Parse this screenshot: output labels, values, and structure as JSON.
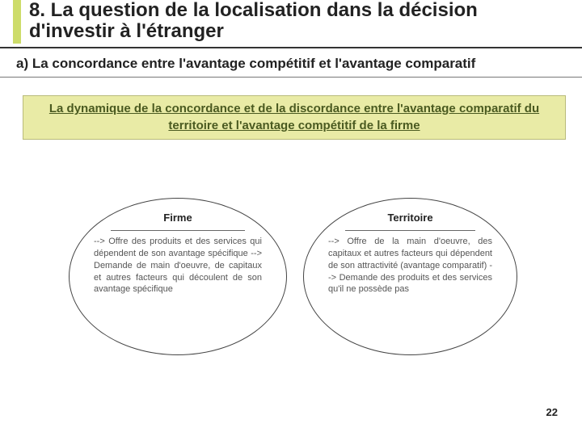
{
  "header": {
    "title": "8. La question de la localisation dans la décision d'investir à l'étranger",
    "subtitle": "a) La concordance entre l'avantage compétitif et l'avantage comparatif"
  },
  "callout": {
    "text": "La dynamique de la concordance et de la discordance entre l'avantage comparatif du territoire et l'avantage compétitif de la firme"
  },
  "diagram": {
    "left": {
      "title": "Firme",
      "body": "--> Offre des produits et des services qui dépendent de son avantage spécifique\n--> Demande de main d'oeuvre, de capitaux et autres facteurs qui découlent de son avantage spécifique"
    },
    "right": {
      "title": "Territoire",
      "body": "--> Offre de la main d'oeuvre, des capitaux et autres facteurs qui dépendent de son attractivité (avantage comparatif)\n--> Demande des produits et des services qu'il ne possède pas"
    }
  },
  "colors": {
    "accent_green": "#cddc6a",
    "callout_bg": "#e9eba6",
    "callout_border": "#b9bb7a",
    "callout_text": "#4a5a20",
    "rule_dark": "#333333",
    "rule_light": "#777777",
    "oval_border": "#444444",
    "body_text": "#555555"
  },
  "page_number": "22"
}
